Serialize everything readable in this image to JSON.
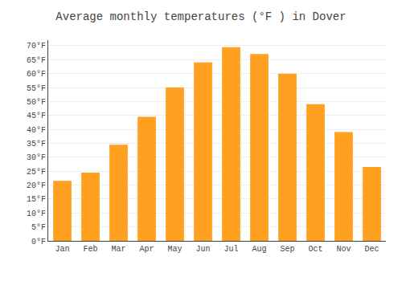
{
  "chart_data": {
    "type": "bar",
    "title": "Average monthly temperatures (°F ) in Dover",
    "categories": [
      "Jan",
      "Feb",
      "Mar",
      "Apr",
      "May",
      "Jun",
      "Jul",
      "Aug",
      "Sep",
      "Oct",
      "Nov",
      "Dec"
    ],
    "values": [
      21.5,
      24.5,
      34.5,
      44.5,
      55.0,
      64.0,
      69.5,
      67.0,
      60.0,
      49.0,
      39.0,
      26.5
    ],
    "color": "#FFA020",
    "ylim": [
      0,
      72
    ],
    "yticks": [
      {
        "value": 0,
        "label": "0°F"
      },
      {
        "value": 5,
        "label": "5°F"
      },
      {
        "value": 10,
        "label": "10°F"
      },
      {
        "value": 15,
        "label": "15°F"
      },
      {
        "value": 20,
        "label": "20°F"
      },
      {
        "value": 25,
        "label": "25°F"
      },
      {
        "value": 30,
        "label": "30°F"
      },
      {
        "value": 35,
        "label": "35°F"
      },
      {
        "value": 40,
        "label": "40°F"
      },
      {
        "value": 45,
        "label": "45°F"
      },
      {
        "value": 50,
        "label": "50°F"
      },
      {
        "value": 55,
        "label": "55°F"
      },
      {
        "value": 60,
        "label": "60°F"
      },
      {
        "value": 65,
        "label": "65°F"
      },
      {
        "value": 70,
        "label": "70°F"
      }
    ],
    "grid": true
  }
}
